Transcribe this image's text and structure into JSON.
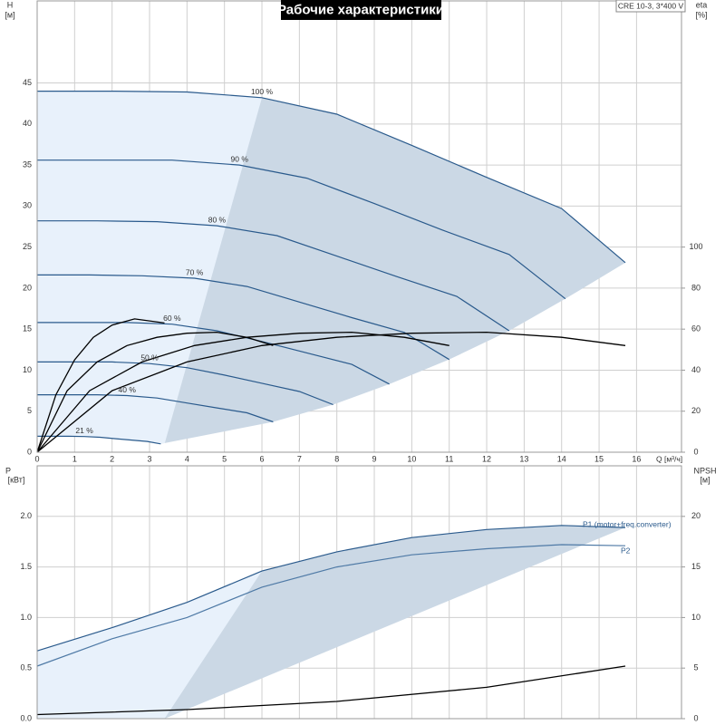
{
  "chart_data": [
    {
      "type": "line",
      "title": "Рабочие характеристики",
      "note": "CRE 10-3, 3*400 V",
      "x_label": "Q [м³/ч]",
      "y_label": "H",
      "y_unit": "[м]",
      "y2_label": "eta",
      "y2_unit": "[%]",
      "xlim": [
        0,
        17.2
      ],
      "xticks": [
        0,
        1,
        2,
        3,
        4,
        5,
        6,
        7,
        8,
        9,
        10,
        11,
        12,
        13,
        14,
        15,
        16
      ],
      "ylim": [
        0,
        55
      ],
      "yticks": [
        0,
        5,
        10,
        15,
        20,
        25,
        30,
        35,
        40,
        45
      ],
      "y2lim": [
        0,
        220
      ],
      "y2ticks": [
        0,
        20,
        40,
        60,
        80,
        100
      ],
      "grid": true,
      "series": [
        {
          "name": "100 %",
          "color": "#2a5a8c",
          "x": [
            0,
            2,
            4,
            6,
            8,
            10,
            12,
            14,
            15.7
          ],
          "values": [
            44,
            44,
            43.9,
            43.2,
            41.2,
            37.4,
            33.5,
            29.7,
            23.1
          ]
        },
        {
          "name": "90 %",
          "color": "#2a5a8c",
          "x": [
            0,
            1.8,
            3.6,
            5.4,
            7.2,
            9,
            10.8,
            12.6,
            14.1
          ],
          "values": [
            35.6,
            35.6,
            35.6,
            35.0,
            33.4,
            30.3,
            27.1,
            24.1,
            18.7
          ]
        },
        {
          "name": "80 %",
          "color": "#2a5a8c",
          "x": [
            0,
            1.6,
            3.2,
            4.8,
            6.4,
            8,
            9.6,
            11.2,
            12.6
          ],
          "values": [
            28.2,
            28.2,
            28.1,
            27.6,
            26.4,
            23.9,
            21.4,
            19.0,
            14.8
          ]
        },
        {
          "name": "70 %",
          "color": "#2a5a8c",
          "x": [
            0,
            1.4,
            2.8,
            4.2,
            5.6,
            7,
            8.4,
            9.8,
            11
          ],
          "values": [
            21.6,
            21.6,
            21.5,
            21.2,
            20.2,
            18.3,
            16.4,
            14.6,
            11.3
          ]
        },
        {
          "name": "60 %",
          "color": "#2a5a8c",
          "x": [
            0,
            1.2,
            2.4,
            3.6,
            4.8,
            6,
            7.2,
            8.4,
            9.4
          ],
          "values": [
            15.8,
            15.8,
            15.8,
            15.6,
            14.8,
            13.5,
            12.1,
            10.7,
            8.3
          ]
        },
        {
          "name": "50 %",
          "color": "#2a5a8c",
          "x": [
            0,
            1,
            2,
            3,
            4,
            5,
            6,
            7,
            7.9
          ],
          "values": [
            11,
            11,
            11,
            10.8,
            10.3,
            9.4,
            8.4,
            7.4,
            5.8
          ]
        },
        {
          "name": "40 %",
          "color": "#2a5a8c",
          "x": [
            0,
            0.8,
            1.6,
            2.4,
            3.2,
            4,
            4.8,
            5.6,
            6.3
          ],
          "values": [
            7.0,
            7.0,
            7.0,
            6.9,
            6.6,
            6.0,
            5.4,
            4.8,
            3.7
          ]
        },
        {
          "name": "21 %",
          "color": "#2a5a8c",
          "x": [
            0,
            0.42,
            0.84,
            1.26,
            1.68,
            2.1,
            2.52,
            2.94,
            3.3
          ],
          "values": [
            1.94,
            1.94,
            1.94,
            1.91,
            1.82,
            1.65,
            1.48,
            1.31,
            1.02
          ]
        },
        {
          "color": "#000000",
          "axis": "y2",
          "x": [
            0,
            2,
            4,
            6,
            8,
            10,
            12,
            14,
            15.7
          ],
          "values": [
            0,
            30,
            44,
            52,
            56,
            58,
            58.5,
            56,
            52
          ]
        },
        {
          "color": "#000000",
          "axis": "y2",
          "x": [
            0,
            1.4,
            2.8,
            4.2,
            5.6,
            7,
            8.4,
            9.8,
            11
          ],
          "values": [
            0,
            30,
            44,
            52,
            56,
            58,
            58.5,
            56,
            52
          ]
        },
        {
          "color": "#000000",
          "axis": "y2",
          "x": [
            0,
            0.8,
            1.6,
            2.4,
            3.2,
            4,
            4.8,
            5.6,
            6.3
          ],
          "values": [
            0,
            30,
            44,
            52,
            56,
            58,
            58.5,
            56,
            52
          ]
        },
        {
          "color": "#000000",
          "axis": "y2",
          "x": [
            0,
            0.5,
            1,
            1.5,
            2,
            2.6,
            3.4
          ],
          "values": [
            0,
            28,
            45,
            56,
            62,
            65,
            63
          ]
        }
      ]
    },
    {
      "type": "line",
      "y_label": "P",
      "y_unit": "[кВт]",
      "y2_label": "NPSH",
      "y2_unit": "[м]",
      "xlim": [
        0,
        17.2
      ],
      "xticks": [
        0,
        1,
        2,
        3,
        4,
        5,
        6,
        7,
        8,
        9,
        10,
        11,
        12,
        13,
        14,
        15,
        16
      ],
      "ylim": [
        0,
        2.5
      ],
      "yticks": [
        {
          "value": 0,
          "label": "0.0"
        },
        0.5,
        {
          "value": 1,
          "label": "1.0"
        },
        1.5,
        {
          "value": 2,
          "label": "2.0"
        }
      ],
      "y2lim": [
        0,
        25
      ],
      "y2ticks": [
        0,
        5,
        10,
        15,
        20
      ],
      "grid": true,
      "series": [
        {
          "name": "P1 (motor+freq.converter)",
          "color": "#2a5a8c",
          "x": [
            0,
            2,
            4,
            6,
            8,
            10,
            12,
            14,
            15.7
          ],
          "values": [
            0.67,
            0.9,
            1.15,
            1.46,
            1.65,
            1.79,
            1.87,
            1.91,
            1.89
          ]
        },
        {
          "name": "P2",
          "color": "#4f7aa6",
          "x": [
            0,
            2,
            4,
            6,
            8,
            10,
            12,
            14,
            15.7
          ],
          "values": [
            0.52,
            0.79,
            1.0,
            1.3,
            1.5,
            1.62,
            1.68,
            1.72,
            1.71
          ]
        },
        {
          "color": "#000000",
          "axis": "y2",
          "x": [
            0,
            4,
            8,
            12,
            15.7
          ],
          "values": [
            0.4,
            0.9,
            1.7,
            3.1,
            5.2
          ]
        }
      ]
    }
  ]
}
